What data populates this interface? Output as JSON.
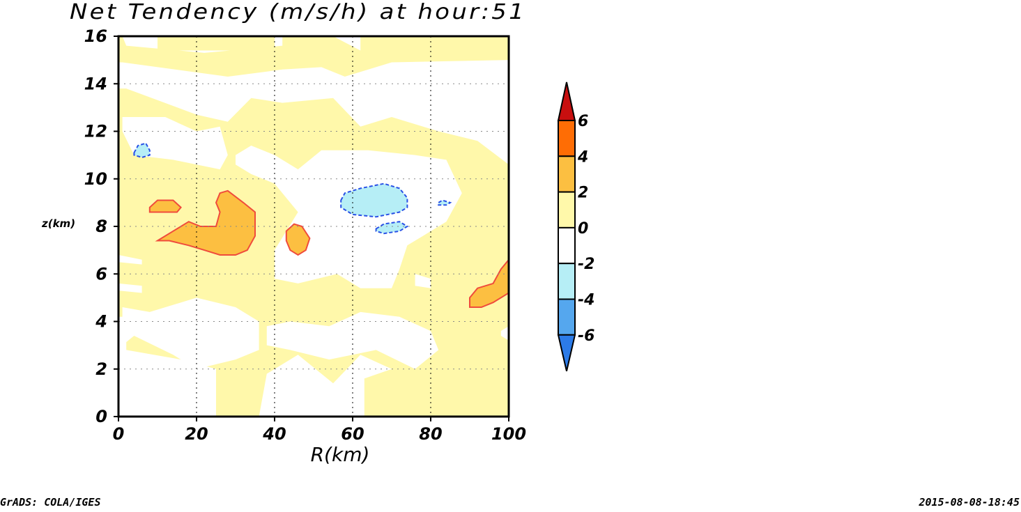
{
  "chart_data": {
    "type": "heatmap",
    "title": "Net Tendency (m/s/h) at hour:51",
    "xlabel": "R(km)",
    "ylabel": "z(km)",
    "xlim": [
      0,
      100
    ],
    "ylim": [
      0,
      16
    ],
    "xticks": [
      0,
      20,
      40,
      60,
      80,
      100
    ],
    "yticks": [
      0,
      2,
      4,
      6,
      8,
      10,
      12,
      14,
      16
    ],
    "grid": true,
    "colorbar": {
      "levels": [
        -6,
        -4,
        -2,
        0,
        2,
        4,
        6
      ],
      "labels": [
        "-6",
        "-4",
        "-2",
        "0",
        "2",
        "4",
        "6"
      ],
      "colors": [
        "#2c7be8",
        "#55a7ee",
        "#b6eef6",
        "#ffffff",
        "#fff8aa",
        "#fcbf41",
        "#fe6d05",
        "#c80f0f"
      ],
      "position": "right"
    },
    "contour_colors": {
      "positive": "#f04b3c",
      "negative": "#2850e6"
    },
    "fields": [
      {
        "level": "0 to 2",
        "color": "#fff8aa",
        "polygon": [
          [
            10,
            16
          ],
          [
            10,
            15.4
          ],
          [
            40,
            15.4
          ],
          [
            40,
            16
          ]
        ]
      },
      {
        "level": "0 to 2",
        "color": "#fff8aa",
        "polygon": [
          [
            1,
            14.9
          ],
          [
            28,
            14.3
          ],
          [
            42,
            14.6
          ],
          [
            52,
            14.7
          ],
          [
            58,
            14.3
          ],
          [
            70,
            14.9
          ],
          [
            100,
            15.0
          ],
          [
            100,
            16
          ],
          [
            62,
            16
          ],
          [
            62,
            15.4
          ],
          [
            55,
            16
          ],
          [
            42,
            16
          ],
          [
            42,
            15.6
          ],
          [
            22,
            15.3
          ],
          [
            2,
            15.6
          ],
          [
            1,
            16
          ],
          [
            0,
            16
          ],
          [
            0,
            14.9
          ]
        ]
      },
      {
        "level": "0 to 2",
        "color": "#fff8aa",
        "polygon": [
          [
            2,
            13.8
          ],
          [
            20,
            12.7
          ],
          [
            28,
            12.4
          ],
          [
            34,
            13.4
          ],
          [
            42,
            13.2
          ],
          [
            55,
            13.4
          ],
          [
            62,
            12.2
          ],
          [
            70,
            12.6
          ],
          [
            82,
            12.0
          ],
          [
            92,
            11.6
          ],
          [
            100,
            10.6
          ],
          [
            100,
            0
          ],
          [
            63,
            0
          ],
          [
            63,
            1.6
          ],
          [
            70,
            2.0
          ],
          [
            62,
            2.6
          ],
          [
            55,
            1.4
          ],
          [
            46,
            2.6
          ],
          [
            38,
            1.8
          ],
          [
            36,
            0
          ],
          [
            25,
            0
          ],
          [
            25,
            2.0
          ],
          [
            16,
            2.4
          ],
          [
            2,
            2.8
          ],
          [
            2,
            4.2
          ],
          [
            0,
            4.2
          ],
          [
            0,
            13.8
          ]
        ]
      },
      {
        "level": "0 to 2",
        "color": "#fff8aa",
        "polygon": [
          [
            70,
            0
          ],
          [
            84,
            0
          ],
          [
            86,
            1.0
          ],
          [
            82,
            1.8
          ],
          [
            75,
            2.0
          ],
          [
            70,
            1.0
          ]
        ]
      },
      {
        "level": "-2 to 0",
        "color": "#ffffff",
        "polygon": [
          [
            1,
            12.6
          ],
          [
            12,
            12.6
          ],
          [
            20,
            12.0
          ],
          [
            26,
            12.2
          ],
          [
            28,
            11.0
          ],
          [
            26,
            10.4
          ],
          [
            14,
            10.8
          ],
          [
            4,
            11.0
          ],
          [
            1,
            12.0
          ]
        ]
      },
      {
        "level": "-2 to 0",
        "color": "#ffffff",
        "polygon": [
          [
            30,
            11.0
          ],
          [
            34,
            11.4
          ],
          [
            40,
            11.0
          ],
          [
            46,
            10.4
          ],
          [
            52,
            11.2
          ],
          [
            64,
            11.2
          ],
          [
            76,
            11.0
          ],
          [
            84,
            10.8
          ],
          [
            88,
            9.4
          ],
          [
            84,
            8.2
          ],
          [
            78,
            7.6
          ],
          [
            74,
            7.2
          ],
          [
            72,
            6.2
          ],
          [
            70,
            5.4
          ],
          [
            62,
            5.4
          ],
          [
            56,
            6.0
          ],
          [
            46,
            5.6
          ],
          [
            40,
            5.8
          ],
          [
            40,
            7.0
          ],
          [
            46,
            8.6
          ],
          [
            40,
            9.8
          ],
          [
            34,
            10.2
          ],
          [
            30,
            10.6
          ]
        ]
      },
      {
        "level": "-2 to 0",
        "color": "#ffffff",
        "polygon": [
          [
            1,
            4.6
          ],
          [
            8,
            4.4
          ],
          [
            20,
            5.0
          ],
          [
            30,
            4.6
          ],
          [
            36,
            4.0
          ],
          [
            36,
            2.8
          ],
          [
            30,
            2.4
          ],
          [
            20,
            2.0
          ],
          [
            14,
            2.6
          ],
          [
            4,
            3.4
          ],
          [
            1,
            3.0
          ]
        ]
      },
      {
        "level": "-2 to 0",
        "color": "#ffffff",
        "polygon": [
          [
            38,
            3.8
          ],
          [
            44,
            4.0
          ],
          [
            54,
            3.8
          ],
          [
            62,
            4.4
          ],
          [
            72,
            4.2
          ],
          [
            80,
            3.6
          ],
          [
            82,
            2.8
          ],
          [
            76,
            2.0
          ],
          [
            66,
            2.8
          ],
          [
            54,
            2.4
          ],
          [
            44,
            2.8
          ],
          [
            38,
            3.0
          ]
        ]
      },
      {
        "level": "-2 to 0",
        "color": "#ffffff",
        "polygon": [
          [
            0,
            6.8
          ],
          [
            6,
            6.6
          ],
          [
            6,
            6.4
          ],
          [
            0,
            6.5
          ]
        ]
      },
      {
        "level": "-2 to 0",
        "color": "#ffffff",
        "polygon": [
          [
            0,
            5.6
          ],
          [
            6,
            5.5
          ],
          [
            6,
            5.2
          ],
          [
            0,
            5.3
          ]
        ]
      },
      {
        "level": "-2 to 0",
        "color": "#ffffff",
        "polygon": [
          [
            76,
            6.0
          ],
          [
            80,
            5.8
          ],
          [
            80,
            5.4
          ],
          [
            76,
            5.5
          ]
        ]
      },
      {
        "level": "-2 to 0",
        "color": "#ffffff",
        "polygon": [
          [
            98,
            3.6
          ],
          [
            100,
            3.8
          ],
          [
            100,
            3.2
          ],
          [
            98,
            3.4
          ]
        ]
      },
      {
        "level": "2 to 4",
        "color": "#fcbf41",
        "polygon": [
          [
            10,
            7.4
          ],
          [
            14,
            7.8
          ],
          [
            18,
            8.2
          ],
          [
            21,
            8.0
          ],
          [
            25,
            8.0
          ],
          [
            26,
            8.6
          ],
          [
            25,
            9.0
          ],
          [
            26,
            9.4
          ],
          [
            28,
            9.5
          ],
          [
            32,
            9.0
          ],
          [
            35,
            8.6
          ],
          [
            35,
            7.6
          ],
          [
            33,
            7.0
          ],
          [
            30,
            6.8
          ],
          [
            26,
            6.8
          ],
          [
            22,
            7.0
          ],
          [
            18,
            7.2
          ],
          [
            13,
            7.4
          ]
        ]
      },
      {
        "level": "2 to 4",
        "color": "#fcbf41",
        "polygon": [
          [
            8,
            8.8
          ],
          [
            10,
            9.1
          ],
          [
            14,
            9.1
          ],
          [
            16,
            8.8
          ],
          [
            15,
            8.6
          ],
          [
            12,
            8.6
          ],
          [
            8,
            8.6
          ]
        ]
      },
      {
        "level": "2 to 4",
        "color": "#fcbf41",
        "polygon": [
          [
            43,
            7.8
          ],
          [
            45,
            8.1
          ],
          [
            47,
            8.0
          ],
          [
            49,
            7.5
          ],
          [
            48,
            7.0
          ],
          [
            46,
            6.8
          ],
          [
            44,
            7.0
          ],
          [
            43,
            7.4
          ]
        ]
      },
      {
        "level": "2 to 4",
        "color": "#fcbf41",
        "polygon": [
          [
            90,
            5.0
          ],
          [
            92,
            5.4
          ],
          [
            96,
            5.6
          ],
          [
            98,
            6.2
          ],
          [
            100,
            6.6
          ],
          [
            100,
            5.2
          ],
          [
            96,
            4.8
          ],
          [
            93,
            4.6
          ],
          [
            90,
            4.6
          ]
        ]
      },
      {
        "level": "-4 to -2",
        "color": "#b6eef6",
        "polygon": [
          [
            57,
            9.1
          ],
          [
            58,
            9.4
          ],
          [
            62,
            9.6
          ],
          [
            68,
            9.8
          ],
          [
            72,
            9.6
          ],
          [
            74,
            9.2
          ],
          [
            74,
            8.8
          ],
          [
            72,
            8.6
          ],
          [
            66,
            8.4
          ],
          [
            60,
            8.5
          ],
          [
            57,
            8.8
          ]
        ]
      },
      {
        "level": "-4 to -2",
        "color": "#b6eef6",
        "polygon": [
          [
            66,
            7.9
          ],
          [
            68,
            8.1
          ],
          [
            72,
            8.2
          ],
          [
            74,
            8.0
          ],
          [
            72,
            7.8
          ],
          [
            68,
            7.7
          ],
          [
            66,
            7.8
          ]
        ]
      },
      {
        "level": "-4 to -2",
        "color": "#b6eef6",
        "polygon": [
          [
            4,
            11.1
          ],
          [
            5,
            11.4
          ],
          [
            7,
            11.5
          ],
          [
            8,
            11.2
          ],
          [
            8,
            11.0
          ],
          [
            6,
            10.9
          ],
          [
            4,
            11.0
          ]
        ]
      },
      {
        "level": "-4 to -2",
        "color": "#b6eef6",
        "polygon": [
          [
            82,
            9.0
          ],
          [
            83,
            9.1
          ],
          [
            85,
            9.0
          ],
          [
            84,
            8.9
          ],
          [
            82,
            8.9
          ]
        ]
      }
    ]
  },
  "footer": {
    "left": "GrADS: COLA/IGES",
    "right": "2015-08-08-18:45"
  }
}
